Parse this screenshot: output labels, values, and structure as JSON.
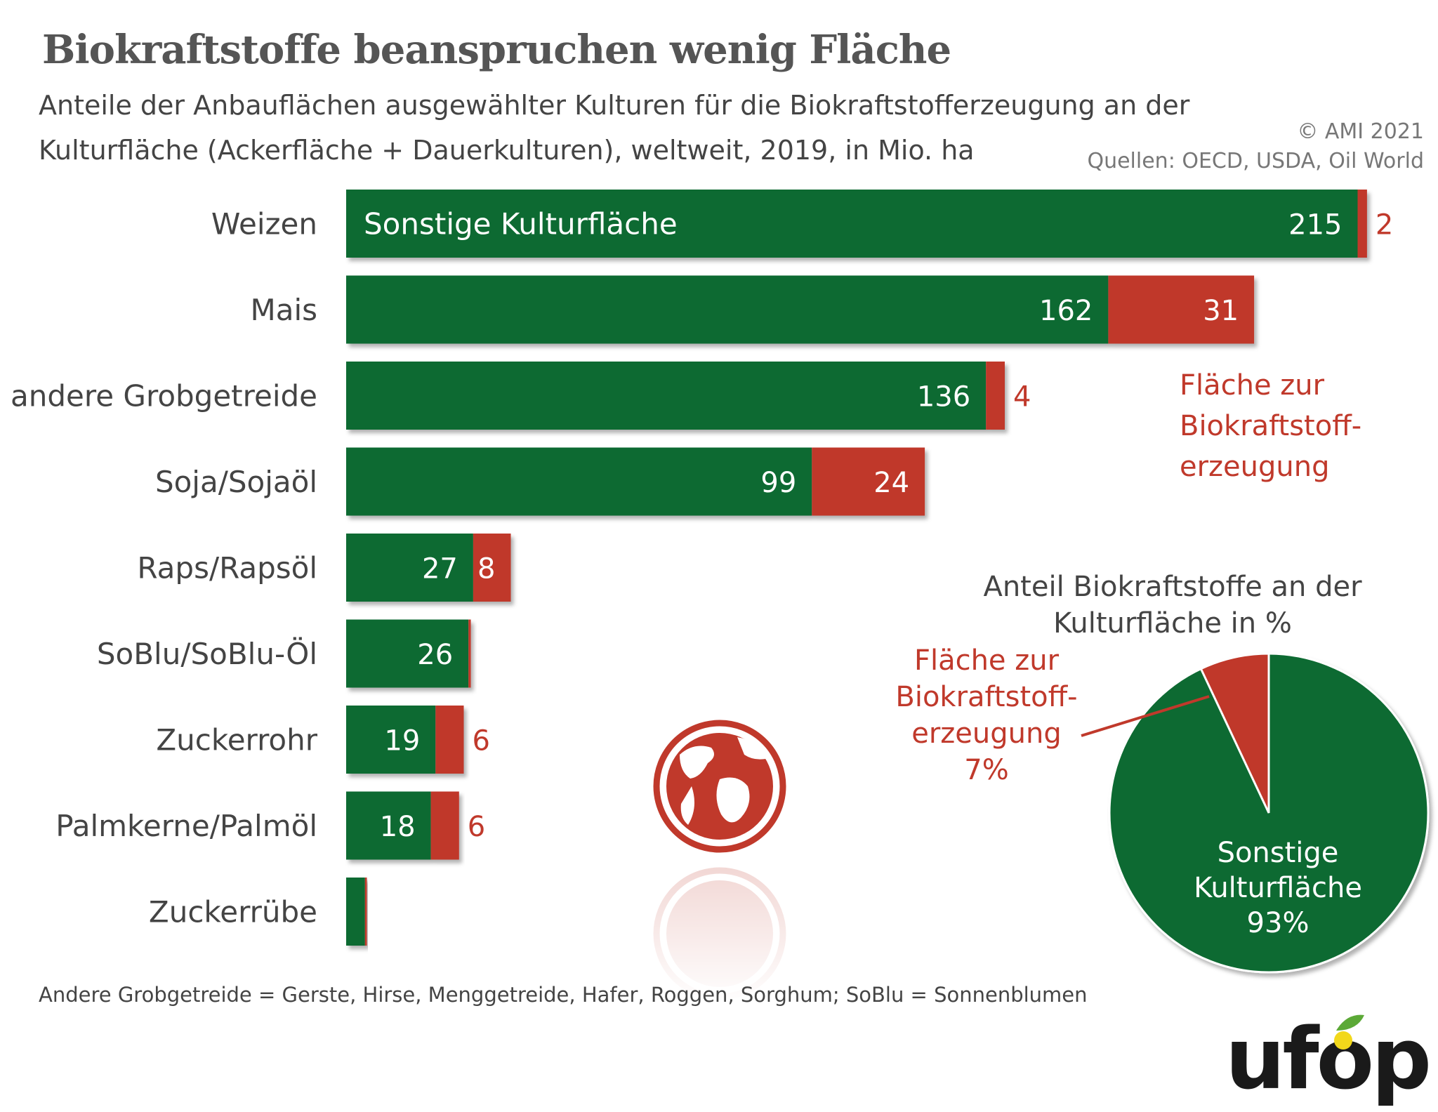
{
  "title": "Biokraftstoffe beanspruchen wenig Fläche",
  "subtitle_line1": "Anteile der Anbauflächen ausgewählter Kulturen für die Biokraftstofferzeugung an der",
  "subtitle_line2": "Kulturfläche (Ackerfläche + Dauerkulturen), weltweit, 2019, in Mio. ha",
  "copyright": "© AMI 2021",
  "source": "Quellen: OECD, USDA, Oil World",
  "footnote": "Andere Grobgetreide = Gerste, Hirse, Menggetreide, Hafer, Roggen, Sorghum; SoBlu = Sonnenblumen",
  "logo_text": "ufop",
  "colors": {
    "green": "#0e6b32",
    "red": "#c0392b",
    "text": "#444444"
  },
  "chart_data": [
    {
      "type": "bar",
      "orientation": "horizontal",
      "stacked": true,
      "categories": [
        "Weizen",
        "Mais",
        "andere Grobgetreide",
        "Soja/Sojaöl",
        "Raps/Rapsöl",
        "SoBlu/SoBlu-Öl",
        "Zuckerrohr",
        "Palmkerne/Palmöl",
        "Zuckerrübe"
      ],
      "series": [
        {
          "name": "Sonstige Kulturfläche",
          "values": [
            215,
            162,
            136,
            99,
            27,
            26,
            19,
            18,
            4
          ],
          "labels": [
            "215",
            "162",
            "136",
            "99",
            "27",
            "26",
            "19",
            "18",
            ""
          ]
        },
        {
          "name": "Fläche zur Biokraftstoff-erzeugung",
          "values": [
            2,
            31,
            4,
            24,
            8,
            0.5,
            6,
            6,
            0.4
          ],
          "labels": [
            "2",
            "31",
            "4",
            "24",
            "8",
            "",
            "6",
            "6",
            ""
          ]
        }
      ],
      "xlim": [
        0,
        230
      ],
      "series_inside_label": "Sonstige Kulturfläche",
      "legend_label_lines": [
        "Fläche zur",
        "Biokraftstoff-",
        "erzeugung"
      ]
    },
    {
      "type": "pie",
      "title_lines": [
        "Anteil Biokraftstoffe an der",
        "Kulturfläche in %"
      ],
      "slices": [
        {
          "label_lines": [
            "Sonstige",
            "Kulturfläche",
            "93%"
          ],
          "value": 93
        },
        {
          "label_lines": [
            "Fläche zur",
            "Biokraftstoff-",
            "erzeugung",
            "7%"
          ],
          "value": 7
        }
      ]
    }
  ]
}
